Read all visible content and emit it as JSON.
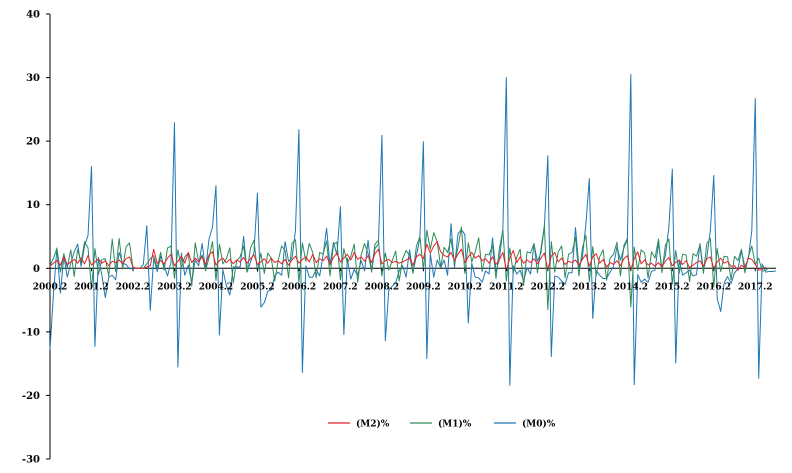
{
  "chart_data": {
    "type": "line",
    "title": "",
    "xlabel": "",
    "ylabel": "",
    "ylim": [
      -30,
      40
    ],
    "yticks": [
      -30,
      -20,
      -10,
      0,
      10,
      20,
      30,
      40
    ],
    "grid": false,
    "legend_position": "bottom",
    "x_start": "2000.2",
    "x_step": "1 month",
    "x_tick_labels": [
      "2000.2",
      "2001.2",
      "2002.2",
      "2003.2",
      "2004.2",
      "2005.2",
      "2006.2",
      "2007.2",
      "2008.2",
      "2009.2",
      "2010.2",
      "2011.2",
      "2012.2",
      "2013.2",
      "2014.2",
      "2015.2",
      "2016.2",
      "2017.2"
    ],
    "series": [
      {
        "name": "(M2)%",
        "color": "#e8202a",
        "values": [
          0.3,
          0.8,
          1.2,
          0.5,
          1.8,
          0.6,
          1.0,
          1.4,
          0.8,
          1.6,
          0.7,
          2.0,
          0.5,
          1.0,
          1.5,
          0.8,
          1.2,
          0.4,
          1.1,
          0.9,
          1.3,
          0.7,
          1.5,
          1.8,
          0.2,
          0.0,
          0.0,
          0.0,
          0.2,
          0.4,
          3.0,
          0.8,
          1.2,
          0.7,
          1.6,
          2.2,
          0.4,
          1.1,
          1.9,
          0.8,
          2.5,
          0.9,
          1.6,
          1.0,
          1.8,
          0.6,
          2.1,
          2.6,
          0.5,
          1.2,
          1.6,
          0.9,
          1.4,
          0.7,
          1.3,
          1.0,
          1.7,
          0.8,
          1.5,
          2.1,
          0.6,
          1.0,
          1.5,
          0.8,
          1.6,
          0.9,
          1.2,
          0.7,
          1.4,
          0.5,
          1.3,
          1.9,
          0.8,
          1.4,
          1.8,
          1.0,
          2.2,
          0.9,
          1.5,
          1.2,
          1.9,
          0.7,
          1.7,
          2.4,
          1.0,
          1.6,
          2.2,
          1.3,
          2.5,
          1.4,
          1.8,
          1.1,
          2.0,
          0.9,
          2.3,
          3.0,
          0.7,
          1.2,
          1.4,
          0.9,
          1.1,
          0.8,
          1.0,
          1.3,
          1.6,
          0.5,
          1.8,
          2.2,
          1.5,
          3.8,
          2.4,
          3.5,
          4.2,
          2.6,
          2.0,
          1.8,
          2.5,
          1.2,
          2.2,
          3.0,
          0.9,
          1.8,
          2.5,
          1.6,
          2.0,
          1.2,
          1.5,
          0.8,
          1.8,
          0.6,
          1.4,
          2.5,
          -0.3,
          1.6,
          2.8,
          0.9,
          1.8,
          0.8,
          1.3,
          0.9,
          1.5,
          0.7,
          1.6,
          2.4,
          -0.2,
          1.9,
          2.5,
          1.0,
          1.6,
          0.6,
          1.1,
          0.9,
          1.3,
          0.5,
          1.4,
          2.2,
          0.3,
          1.8,
          2.3,
          0.8,
          1.4,
          0.2,
          0.9,
          0.6,
          1.2,
          0.4,
          1.5,
          2.0,
          -0.2,
          1.5,
          2.6,
          0.7,
          1.3,
          0.5,
          0.8,
          0.3,
          0.9,
          0.2,
          1.1,
          1.7,
          0.4,
          0.9,
          1.3,
          0.6,
          1.2,
          0.1,
          0.5,
          0.9,
          1.2,
          0.3,
          1.5,
          1.8,
          0.0,
          1.0,
          1.6,
          0.8,
          1.1,
          0.3,
          0.4,
          -0.3,
          0.5,
          0.1,
          1.6,
          1.4,
          0.6,
          -0.3,
          -0.2,
          0.2
        ]
      },
      {
        "name": "(M1)%",
        "color": "#2e8b57",
        "values": [
          0.4,
          1.6,
          3.1,
          -0.6,
          2.3,
          0.1,
          2.9,
          -1.3,
          3.0,
          0.9,
          4.2,
          3.2,
          -3.2,
          3.1,
          -1.0,
          1.4,
          1.5,
          -1.2,
          4.6,
          -0.5,
          4.7,
          -0.1,
          3.4,
          4.0,
          0.1,
          0.0,
          0.0,
          0.0,
          0.7,
          1.5,
          2.0,
          0.0,
          2.5,
          -0.3,
          3.2,
          3.5,
          -1.6,
          2.9,
          0.1,
          1.8,
          2.4,
          -2.8,
          4.0,
          1.0,
          2.1,
          -0.4,
          1.7,
          4.2,
          -1.9,
          3.8,
          0.7,
          1.5,
          3.2,
          -2.3,
          1.2,
          1.8,
          3.5,
          -0.6,
          3.2,
          4.4,
          -0.5,
          2.4,
          -0.8,
          2.4,
          1.6,
          -2.0,
          1.2,
          3.5,
          2.8,
          -1.5,
          3.9,
          4.5,
          -2.2,
          4.0,
          1.1,
          3.9,
          2.5,
          -1.5,
          2.5,
          2.2,
          4.3,
          -1.2,
          3.8,
          4.1,
          -1.8,
          3.1,
          0.8,
          1.9,
          3.8,
          -2.2,
          2.1,
          3.9,
          2.3,
          -0.4,
          3.8,
          4.4,
          -1.2,
          2.4,
          -0.3,
          1.2,
          2.7,
          -2.0,
          1.5,
          2.8,
          2.0,
          -0.8,
          3.5,
          5.0,
          -0.2,
          6.0,
          3.0,
          5.6,
          4.2,
          0.2,
          3.3,
          2.5,
          4.6,
          0.8,
          3.2,
          6.5,
          -0.8,
          4.0,
          1.0,
          2.6,
          4.8,
          -0.5,
          2.2,
          2.1,
          3.6,
          -1.6,
          3.2,
          6.0,
          -2.0,
          3.2,
          -0.8,
          1.7,
          3.0,
          -2.7,
          2.6,
          2.4,
          3.9,
          -0.7,
          3.0,
          6.7,
          -6.5,
          4.2,
          -0.6,
          2.6,
          3.5,
          -1.5,
          2.2,
          2.5,
          4.9,
          -1.2,
          3.2,
          5.2,
          -2.1,
          3.4,
          -1.2,
          1.8,
          2.9,
          -1.9,
          1.6,
          2.2,
          4.1,
          -1.2,
          3.6,
          4.7,
          -6.1,
          3.3,
          -0.3,
          2.9,
          2.4,
          -1.5,
          2.6,
          1.6,
          4.6,
          -0.7,
          3.6,
          4.6,
          -2.5,
          2.8,
          -0.8,
          2.2,
          2.1,
          -2.1,
          2.3,
          1.9,
          3.7,
          -0.8,
          3.9,
          4.7,
          -2.9,
          3.1,
          -0.5,
          1.9,
          1.8,
          -1.8,
          1.9,
          1.2,
          3.0,
          -0.7,
          1.8,
          3.5,
          0.6,
          1.6,
          -0.5,
          -0.3,
          0.1
        ]
      },
      {
        "name": "(M0)%",
        "color": "#1f77b4",
        "values": [
          -12.8,
          -4.0,
          3.2,
          -3.9,
          1.9,
          -1.4,
          0.8,
          2.6,
          3.8,
          0.3,
          3.5,
          5.2,
          16.0,
          -12.3,
          1.7,
          -1.1,
          -4.6,
          -1.4,
          -1.1,
          -1.8,
          2.5,
          0.8,
          0.6,
          -0.1,
          0.0,
          0.0,
          0.0,
          0.6,
          6.7,
          -6.6,
          1.6,
          -0.5,
          1.9,
          0.4,
          -1.2,
          0.9,
          22.9,
          -15.5,
          2.4,
          -1.1,
          0.5,
          -2.2,
          1.3,
          0.4,
          3.9,
          -0.2,
          4.6,
          6.5,
          13.0,
          -10.5,
          -0.2,
          -2.7,
          -4.2,
          0.2,
          0.2,
          0.2,
          5.0,
          -0.6,
          1.0,
          2.5,
          11.8,
          -6.1,
          -5.4,
          -3.6,
          -3.4,
          -1.2,
          -0.6,
          -1.1,
          4.2,
          1.1,
          1.6,
          6.0,
          21.8,
          -16.4,
          0.4,
          -1.4,
          -1.4,
          -0.2,
          -1.2,
          2.1,
          6.3,
          0.5,
          4.1,
          2.1,
          9.7,
          -10.4,
          1.6,
          -1.7,
          -0.2,
          -1.1,
          1.2,
          -0.4,
          4.4,
          -0.6,
          3.1,
          3.8,
          20.9,
          -11.4,
          -3.4,
          -2.8,
          -2.3,
          -0.4,
          0.4,
          -1.4,
          2.9,
          -0.6,
          2.0,
          4.8,
          19.9,
          -14.2,
          2.3,
          -1.4,
          1.3,
          0.1,
          1.3,
          -1.1,
          7.0,
          0.1,
          5.4,
          6.1,
          5.3,
          -8.6,
          0.8,
          -1.4,
          -1.5,
          -2.2,
          -0.4,
          -0.9,
          4.8,
          -0.5,
          1.5,
          6.2,
          30.0,
          -18.4,
          0.4,
          -0.9,
          -0.3,
          -2.0,
          0.1,
          -0.9,
          3.8,
          1.1,
          2.4,
          6.6,
          17.7,
          -13.9,
          -1.2,
          -1.4,
          -2.0,
          -2.5,
          -0.7,
          -0.7,
          6.4,
          0.1,
          1.7,
          6.9,
          14.1,
          -7.9,
          -0.4,
          -1.1,
          -1.6,
          -1.6,
          -0.6,
          0.3,
          3.4,
          1.3,
          3.2,
          4.5,
          30.5,
          -18.3,
          -1.0,
          -2.2,
          -1.7,
          -2.2,
          -0.5,
          -0.3,
          3.9,
          0.1,
          2.0,
          6.4,
          15.6,
          -14.9,
          1.3,
          -1.1,
          -0.7,
          -0.3,
          -1.2,
          -1.0,
          3.9,
          -0.2,
          1.7,
          5.9,
          14.6,
          -4.8,
          -6.8,
          -2.3,
          -1.3,
          -2.4,
          -0.7,
          -0.1,
          2.8,
          0.2,
          1.5,
          5.9,
          26.7,
          -17.3,
          0.7,
          -0.6,
          -0.5,
          -0.5,
          -0.4
        ]
      }
    ]
  }
}
